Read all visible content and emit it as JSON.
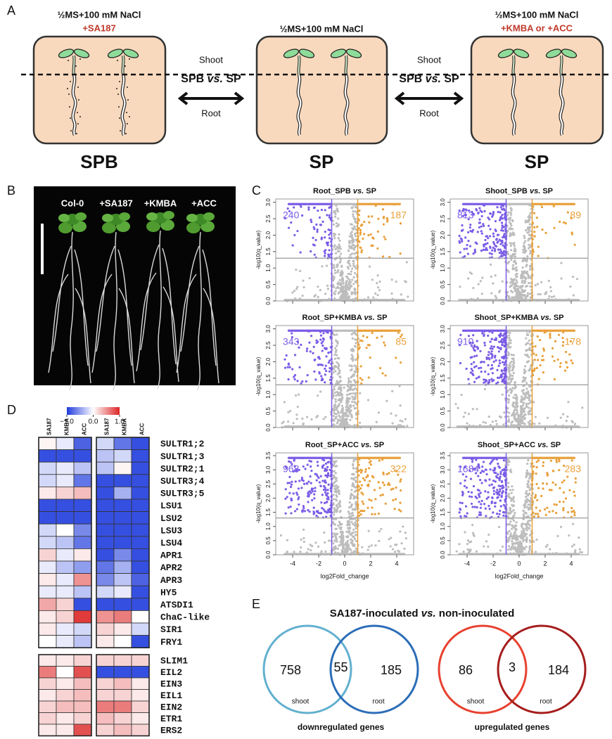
{
  "panel_a": {
    "label": "A",
    "conditions": [
      {
        "medium": "½MS+100 mM NaCl",
        "treatment": "+SA187",
        "name": "SPB"
      },
      {
        "medium": "½MS+100 mM NaCl",
        "name": "SP"
      },
      {
        "medium": "½MS+100 mM NaCl",
        "treatment": "+KMBA or +ACC",
        "name": "SP"
      }
    ],
    "comparisons": [
      {
        "top": "Shoot",
        "pre": "SPB",
        "em": "vs.",
        "post": "SP",
        "bottom": "Root"
      },
      {
        "top": "Shoot",
        "pre": "SPB",
        "em": "vs.",
        "post": "SP",
        "bottom": "Root"
      }
    ]
  },
  "panel_b": {
    "label": "B",
    "columns": [
      "Col-0",
      "+SA187",
      "+KMBA",
      "+ACC"
    ]
  },
  "panel_c": {
    "label": "C",
    "x_label": "log2Fold_change",
    "y_label": "-log10(q_value)",
    "xlim": [
      -5.3,
      5.3
    ],
    "xticks": [
      -4,
      -2,
      0,
      2,
      4
    ],
    "fold_change_cutoffs": [
      -1,
      1
    ],
    "q_cutoff": 1.3,
    "down_color": "#7b5ce6",
    "up_color": "#e8a03a",
    "dot_color": "#bdbdbd",
    "plots": [
      {
        "title": {
          "pre": "Root_SPB",
          "em": "vs.",
          "post": "SP"
        },
        "down": 240,
        "up": 187,
        "ylim": [
          0,
          3.1
        ],
        "yticks": [
          {
            "value": 0,
            "label": "0.0"
          },
          0.5,
          {
            "value": 1,
            "label": "1.0"
          },
          1.5,
          {
            "value": 2,
            "label": "2.0"
          },
          2.5,
          {
            "value": 3,
            "label": "3.0"
          }
        ]
      },
      {
        "title": {
          "pre": "Shoot_SPB",
          "em": "vs.",
          "post": "SP"
        },
        "down": 813,
        "up": 89,
        "ylim": [
          0,
          3.1
        ],
        "yticks": [
          {
            "value": 0,
            "label": "0.0"
          },
          0.5,
          {
            "value": 1,
            "label": "1.0"
          },
          1.5,
          {
            "value": 2,
            "label": "2.0"
          },
          2.5,
          {
            "value": 3,
            "label": "3.0"
          }
        ]
      },
      {
        "title": {
          "pre": "Root_SP+KMBA",
          "em": "vs.",
          "post": "SP"
        },
        "down": 343,
        "up": 85,
        "ylim": [
          0,
          3.1
        ],
        "yticks": [
          {
            "value": 0,
            "label": "0.0"
          },
          0.5,
          {
            "value": 1,
            "label": "1.0"
          },
          1.5,
          {
            "value": 2,
            "label": "2.0"
          },
          2.5,
          {
            "value": 3,
            "label": "3.0"
          }
        ]
      },
      {
        "title": {
          "pre": "Shoot_SP+KMBA",
          "em": "vs.",
          "post": "SP"
        },
        "down": 910,
        "up": 178,
        "ylim": [
          0,
          3.1
        ],
        "yticks": [
          {
            "value": 0,
            "label": "0.0"
          },
          0.5,
          {
            "value": 1,
            "label": "1.0"
          },
          1.5,
          {
            "value": 2,
            "label": "2.0"
          },
          2.5,
          {
            "value": 3,
            "label": "3.0"
          }
        ]
      },
      {
        "title": {
          "pre": "Root_SP+ACC",
          "em": "vs.",
          "post": "SP"
        },
        "down": 968,
        "up": 322,
        "ylim": [
          0,
          3.6
        ],
        "yticks": [
          {
            "value": 0,
            "label": "0.0"
          },
          0.5,
          {
            "value": 1,
            "label": "1.0"
          },
          1.5,
          {
            "value": 2,
            "label": "2.0"
          },
          2.5,
          {
            "value": 3,
            "label": "3.0"
          },
          3.5
        ]
      },
      {
        "title": {
          "pre": "Shoot_SP+ACC",
          "em": "vs.",
          "post": "SP"
        },
        "down": 1684,
        "up": 283,
        "ylim": [
          0,
          3.6
        ],
        "yticks": [
          {
            "value": 0,
            "label": "0.0"
          },
          0.5,
          {
            "value": 1,
            "label": "1.0"
          },
          1.5,
          {
            "value": 2,
            "label": "2.0"
          },
          2.5,
          {
            "value": 3,
            "label": "3.0"
          },
          3.5
        ]
      }
    ]
  },
  "panel_d": {
    "label": "D",
    "colorbar": {
      "lim": [
        -1,
        1
      ],
      "low_color": "#1f3bdc",
      "mid_color": "#ffffff",
      "high_color": "#dc2424",
      "ticks": [
        {
          "value": -1,
          "label": "−1.0"
        },
        {
          "value": 0,
          "label": "0.0"
        },
        {
          "value": 1,
          "label": "1.0"
        }
      ]
    },
    "columns": [
      "SA187",
      "KMBA",
      "ACC",
      "SA187",
      "KMBA",
      "ACC"
    ],
    "blocks": [
      {
        "genes": [
          "SULTR1;2",
          "SULTR1;3",
          "SULTR2;1",
          "SULTR3;4",
          "SULTR3;5",
          "LSU1",
          "LSU2",
          "LSU3",
          "LSU4",
          "APR1",
          "APR2",
          "APR3",
          "HY5",
          "ATSDI1",
          "ChaC-like",
          "SIR1",
          "FRY1"
        ],
        "values": [
          [
            0.05,
            -0.1,
            -0.8,
            -0.2,
            -0.7,
            -0.9
          ],
          [
            -0.9,
            -0.9,
            -0.9,
            -0.3,
            -0.2,
            -0.9
          ],
          [
            -0.2,
            -0.1,
            -0.3,
            -0.3,
            0.05,
            -0.9
          ],
          [
            -0.2,
            -0.1,
            -0.7,
            -0.9,
            -0.9,
            -0.9
          ],
          [
            0.1,
            0.2,
            0.3,
            -0.9,
            -0.4,
            -0.9
          ],
          [
            -0.9,
            -0.9,
            -0.9,
            -0.9,
            -0.9,
            -0.9
          ],
          [
            -0.9,
            -0.9,
            -0.9,
            -0.9,
            -0.9,
            -0.9
          ],
          [
            -0.2,
            0.0,
            -0.6,
            -0.9,
            -0.9,
            -0.9
          ],
          [
            -0.2,
            -0.3,
            -0.7,
            -0.9,
            -0.9,
            -0.9
          ],
          [
            0.2,
            -0.1,
            0.1,
            -0.9,
            -0.6,
            -0.9
          ],
          [
            -0.1,
            -0.3,
            -0.5,
            -0.7,
            -0.4,
            -0.9
          ],
          [
            0.1,
            -0.1,
            0.5,
            -0.6,
            -0.3,
            -0.8
          ],
          [
            -0.1,
            -0.1,
            -0.3,
            -0.2,
            -0.1,
            -0.9
          ],
          [
            0.4,
            0.2,
            -0.9,
            -0.9,
            -0.9,
            -0.9
          ],
          [
            0.1,
            0.2,
            0.9,
            0.5,
            0.6,
            0.0
          ],
          [
            0.1,
            -0.1,
            -0.2,
            0.2,
            0.1,
            -0.2
          ],
          [
            0.0,
            -0.1,
            -0.3,
            0.1,
            0.0,
            -0.9
          ]
        ]
      },
      {
        "genes": [
          "SLIM1",
          "EIL2",
          "EIN3",
          "EIL1",
          "EIN2",
          "ETR1",
          "ERS2"
        ],
        "values": [
          [
            0.1,
            0.1,
            0.2,
            0.2,
            0.2,
            0.2
          ],
          [
            0.6,
            0.0,
            0.8,
            -0.9,
            -0.9,
            -0.9
          ],
          [
            0.2,
            0.1,
            0.3,
            0.2,
            0.3,
            0.1
          ],
          [
            0.1,
            0.2,
            0.3,
            0.2,
            0.2,
            0.1
          ],
          [
            0.2,
            0.3,
            0.3,
            0.6,
            0.6,
            0.2
          ],
          [
            0.2,
            0.1,
            0.2,
            0.3,
            0.2,
            0.1
          ],
          [
            0.1,
            0.1,
            0.8,
            0.2,
            0.3,
            0.2
          ]
        ]
      }
    ]
  },
  "panel_e": {
    "label": "E",
    "title": {
      "pre": "SA187-inoculated",
      "em": "vs.",
      "post": "non-inoculated"
    },
    "venns": [
      {
        "sets": [
          "shoot",
          "root"
        ],
        "only_a": 758,
        "both": 55,
        "only_b": 185,
        "caption": "downregulated genes",
        "colors": [
          "#63b0cf",
          "#2c6db7"
        ]
      },
      {
        "sets": [
          "shoot",
          "root"
        ],
        "only_a": 86,
        "both": 3,
        "only_b": 184,
        "caption": "upregulated genes",
        "colors": [
          "#e8412f",
          "#a61d1d"
        ]
      }
    ]
  }
}
